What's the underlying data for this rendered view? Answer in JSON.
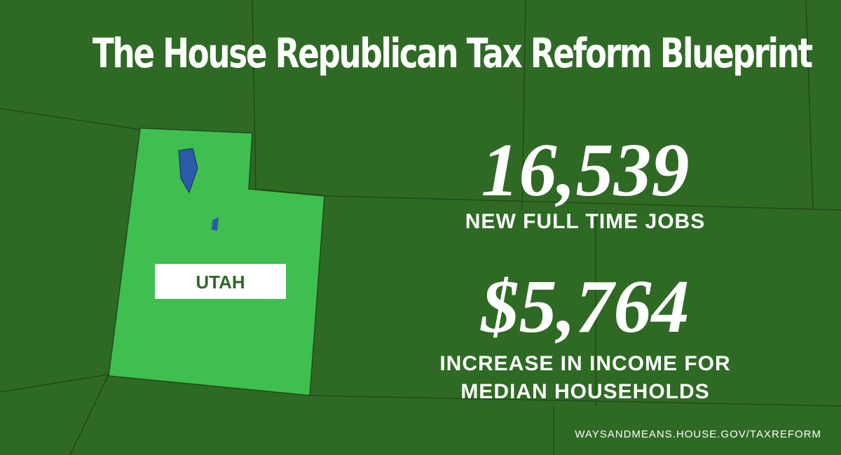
{
  "title": "The House Republican Tax Reform Blueprint",
  "state_label": "UTAH",
  "stats": [
    {
      "value": "16,539",
      "caption": "NEW FULL TIME JOBS"
    },
    {
      "value": "$5,764",
      "caption": "INCREASE IN INCOME FOR MEDIAN HOUSEHOLDS"
    }
  ],
  "footer": "WAYSANDMEANS.HOUSE.GOV/TAXREFORM"
}
